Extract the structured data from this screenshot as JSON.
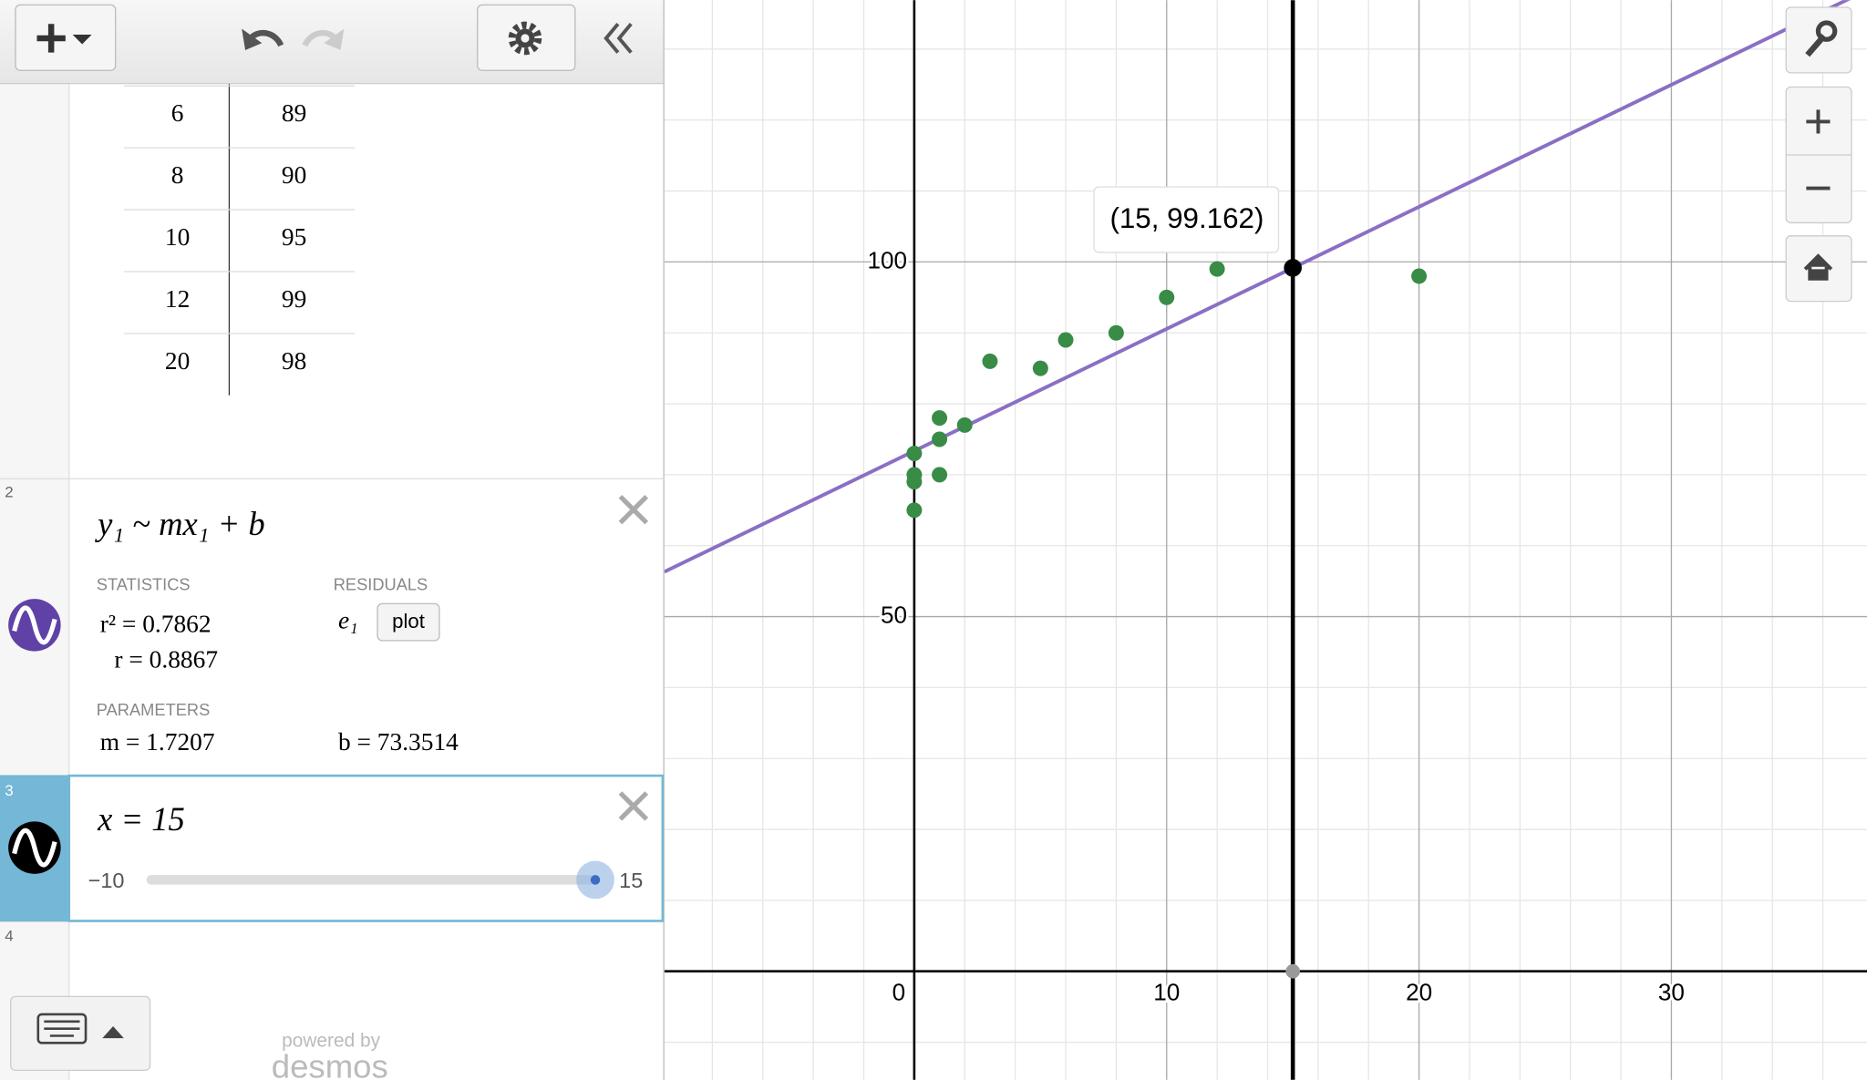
{
  "table": {
    "rows": [
      [
        6,
        89
      ],
      [
        8,
        90
      ],
      [
        10,
        95
      ],
      [
        12,
        99
      ],
      [
        20,
        98
      ]
    ]
  },
  "expressions": [
    {
      "index": "2",
      "latex": "y₁ ~ mx₁ + b",
      "statistics_heading": "STATISTICS",
      "r_squared": "r² = 0.7862",
      "r": "r = 0.8867",
      "residuals_heading": "RESIDUALS",
      "residual_variable": "e₁",
      "plot_button": "plot",
      "parameters_heading": "PARAMETERS",
      "parameters": [
        {
          "value": 1.7207,
          "label": "m = 1.7207"
        },
        {
          "value": 73.3514,
          "label": "b = 73.3514"
        }
      ]
    },
    {
      "index": "3",
      "latex": "x = 15",
      "slider": {
        "min": {
          "value": -10,
          "label": "−10"
        },
        "max": {
          "value": 15,
          "label": "15"
        },
        "value": 15
      }
    },
    {
      "index": "4"
    }
  ],
  "footer": {
    "powered_by": "powered by",
    "brand": "desmos"
  },
  "chart_data": {
    "type": "scatter",
    "series": [
      {
        "color": "#388c46",
        "x": [
          0,
          0,
          0,
          0,
          1,
          1,
          1,
          2,
          3,
          5,
          6,
          8,
          10,
          12,
          20
        ],
        "values": [
          65,
          69,
          70,
          73,
          70,
          75,
          78,
          77,
          86,
          85,
          89,
          90,
          95,
          99,
          98
        ]
      }
    ],
    "line_color": "#8a6fc4",
    "point": {
      "x": 15,
      "y": 99.162,
      "label": "(15, 99.162)"
    },
    "xlim": [
      -9.9,
      37.75
    ],
    "ylim": [
      -15.3,
      136.9
    ],
    "xticks": [
      0,
      10,
      20,
      30
    ],
    "yticks": [
      50,
      100
    ],
    "grid": true,
    "minor_grid": {
      "x": 2,
      "y": 10
    }
  }
}
